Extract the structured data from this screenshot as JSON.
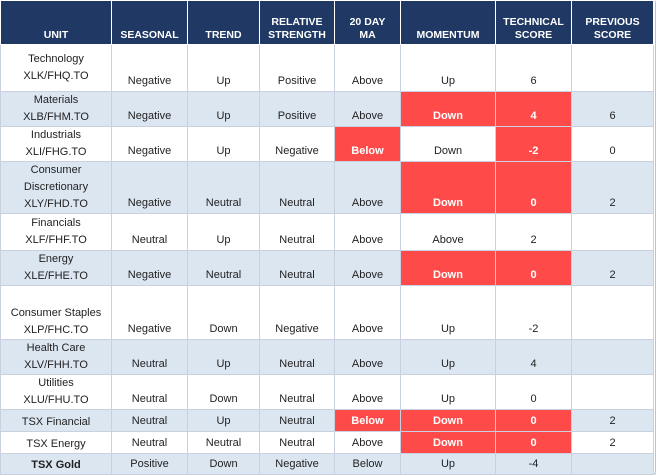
{
  "colors": {
    "header_bg": "#1f3864",
    "row_alt": "#dce6f1",
    "negative_highlight": "#ff4a4a"
  },
  "columns": [
    "UNIT",
    "SEASONAL",
    "TREND",
    "RELATIVE STRENGTH",
    "20 DAY MA",
    "MOMENTUM",
    "TECHNICAL SCORE",
    "PREVIOUS SCORE"
  ],
  "columns_lines": [
    [
      "UNIT"
    ],
    [
      "SEASONAL"
    ],
    [
      "TREND"
    ],
    [
      "RELATIVE",
      "STRENGTH"
    ],
    [
      "20 DAY",
      "MA"
    ],
    [
      "MOMENTUM"
    ],
    [
      "TECHNICAL",
      "SCORE"
    ],
    [
      "PREVIOUS",
      "SCORE"
    ]
  ],
  "rows": [
    {
      "unit": [
        "Technology",
        "XLK/FHQ.TO"
      ],
      "seasonal": "Negative",
      "trend": "Up",
      "relative_strength": "Positive",
      "ma20": "Above",
      "momentum": "Up",
      "technical_score": "6",
      "previous_score": "",
      "highlight": []
    },
    {
      "unit": [
        "Materials",
        "XLB/FHM.TO"
      ],
      "seasonal": "Negative",
      "trend": "Up",
      "relative_strength": "Positive",
      "ma20": "Above",
      "momentum": "Down",
      "technical_score": "4",
      "previous_score": "6",
      "highlight": [
        "momentum",
        "technical_score"
      ]
    },
    {
      "unit": [
        "Industrials",
        "XLI/FHG.TO"
      ],
      "seasonal": "Negative",
      "trend": "Up",
      "relative_strength": "Negative",
      "ma20": "Below",
      "momentum": "Down",
      "technical_score": "-2",
      "previous_score": "0",
      "highlight": [
        "ma20",
        "technical_score"
      ]
    },
    {
      "unit": [
        "Consumer",
        "Discretionary",
        "XLY/FHD.TO"
      ],
      "seasonal": "Negative",
      "trend": "Neutral",
      "relative_strength": "Neutral",
      "ma20": "Above",
      "momentum": "Down",
      "technical_score": "0",
      "previous_score": "2",
      "highlight": [
        "momentum",
        "technical_score"
      ]
    },
    {
      "unit": [
        "Financials",
        "XLF/FHF.TO"
      ],
      "seasonal": "Neutral",
      "trend": "Up",
      "relative_strength": "Neutral",
      "ma20": "Above",
      "momentum": "Above",
      "technical_score": "2",
      "previous_score": "",
      "highlight": []
    },
    {
      "unit": [
        "Energy",
        "XLE/FHE.TO"
      ],
      "seasonal": "Negative",
      "trend": "Neutral",
      "relative_strength": "Neutral",
      "ma20": "Above",
      "momentum": "Down",
      "technical_score": "0",
      "previous_score": "2",
      "highlight": [
        "momentum",
        "technical_score"
      ]
    },
    {
      "unit": [
        "Consumer Staples",
        "XLP/FHC.TO"
      ],
      "seasonal": "Negative",
      "trend": "Down",
      "relative_strength": "Negative",
      "ma20": "Above",
      "momentum": "Up",
      "technical_score": "-2",
      "previous_score": "",
      "highlight": []
    },
    {
      "unit": [
        "Health Care",
        "XLV/FHH.TO"
      ],
      "seasonal": "Neutral",
      "trend": "Up",
      "relative_strength": "Neutral",
      "ma20": "Above",
      "momentum": "Up",
      "technical_score": "4",
      "previous_score": "",
      "highlight": []
    },
    {
      "unit": [
        "Utilities",
        "XLU/FHU.TO"
      ],
      "seasonal": "Neutral",
      "trend": "Down",
      "relative_strength": "Neutral",
      "ma20": "Above",
      "momentum": "Up",
      "technical_score": "0",
      "previous_score": "",
      "highlight": []
    },
    {
      "unit": [
        "TSX Financial"
      ],
      "seasonal": "Neutral",
      "trend": "Up",
      "relative_strength": "Neutral",
      "ma20": "Below",
      "momentum": "Down",
      "technical_score": "0",
      "previous_score": "2",
      "highlight": [
        "ma20",
        "momentum",
        "technical_score"
      ]
    },
    {
      "unit": [
        "TSX Energy"
      ],
      "seasonal": "Neutral",
      "trend": "Neutral",
      "relative_strength": "Neutral",
      "ma20": "Above",
      "momentum": "Down",
      "technical_score": "0",
      "previous_score": "2",
      "highlight": [
        "momentum",
        "technical_score"
      ]
    },
    {
      "unit": [
        "TSX Gold"
      ],
      "seasonal": "Positive",
      "trend": "Down",
      "relative_strength": "Negative",
      "ma20": "Below",
      "momentum": "Up",
      "technical_score": "-4",
      "previous_score": "",
      "highlight": []
    }
  ]
}
